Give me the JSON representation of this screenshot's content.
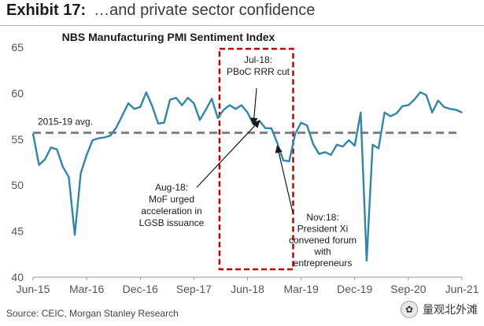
{
  "header": {
    "exhibit_label": "Exhibit 17:",
    "exhibit_title": "…and private sector confidence"
  },
  "source": "Source: CEIC, Morgan Stanley Research",
  "watermark": {
    "text": "量观北外滩"
  },
  "colors": {
    "line": "#2f86a6",
    "avg": "#7f7f7f",
    "highlight": "#c00000",
    "grid": "#dddddd"
  },
  "chart_data": {
    "type": "line",
    "title": "NBS Manufacturing PMI Sentiment Index",
    "xlabel": "",
    "ylabel": "",
    "ylim": [
      40,
      65
    ],
    "yticks": [
      40,
      45,
      50,
      55,
      60,
      65
    ],
    "x_tick_labels": [
      "Jun-15",
      "Mar-16",
      "Dec-16",
      "Sep-17",
      "Jun-18",
      "Mar-19",
      "Dec-19",
      "Sep-20",
      "Jun-21"
    ],
    "grid": false,
    "series": [
      {
        "values": [
          {
            "x": "2015-06",
            "y": 55.6
          },
          {
            "x": "2015-07",
            "y": 52.2
          },
          {
            "x": "2015-08",
            "y": 52.8
          },
          {
            "x": "2015-09",
            "y": 54.1
          },
          {
            "x": "2015-10",
            "y": 53.9
          },
          {
            "x": "2015-11",
            "y": 52.0
          },
          {
            "x": "2015-12",
            "y": 50.9
          },
          {
            "x": "2016-01",
            "y": 44.6
          },
          {
            "x": "2016-02",
            "y": 51.3
          },
          {
            "x": "2016-03",
            "y": 53.3
          },
          {
            "x": "2016-04",
            "y": 54.9
          },
          {
            "x": "2016-05",
            "y": 55.1
          },
          {
            "x": "2016-06",
            "y": 55.2
          },
          {
            "x": "2016-07",
            "y": 55.4
          },
          {
            "x": "2016-08",
            "y": 56.3
          },
          {
            "x": "2016-09",
            "y": 57.6
          },
          {
            "x": "2016-10",
            "y": 58.9
          },
          {
            "x": "2016-11",
            "y": 58.3
          },
          {
            "x": "2016-12",
            "y": 58.5
          },
          {
            "x": "2017-01",
            "y": 60.1
          },
          {
            "x": "2017-02",
            "y": 58.6
          },
          {
            "x": "2017-03",
            "y": 56.7
          },
          {
            "x": "2017-04",
            "y": 56.8
          },
          {
            "x": "2017-05",
            "y": 59.3
          },
          {
            "x": "2017-06",
            "y": 59.5
          },
          {
            "x": "2017-07",
            "y": 58.7
          },
          {
            "x": "2017-08",
            "y": 59.5
          },
          {
            "x": "2017-09",
            "y": 58.9
          },
          {
            "x": "2017-10",
            "y": 57.1
          },
          {
            "x": "2017-11",
            "y": 58.2
          },
          {
            "x": "2017-12",
            "y": 59.4
          },
          {
            "x": "2018-01",
            "y": 57.3
          },
          {
            "x": "2018-02",
            "y": 58.2
          },
          {
            "x": "2018-03",
            "y": 58.7
          },
          {
            "x": "2018-04",
            "y": 58.3
          },
          {
            "x": "2018-05",
            "y": 58.7
          },
          {
            "x": "2018-06",
            "y": 57.9
          },
          {
            "x": "2018-07",
            "y": 56.6
          },
          {
            "x": "2018-08",
            "y": 57.0
          },
          {
            "x": "2018-09",
            "y": 56.2
          },
          {
            "x": "2018-10",
            "y": 56.2
          },
          {
            "x": "2018-11",
            "y": 54.6
          },
          {
            "x": "2018-12",
            "y": 52.7
          },
          {
            "x": "2019-01",
            "y": 52.6
          },
          {
            "x": "2019-02",
            "y": 55.6
          },
          {
            "x": "2019-03",
            "y": 56.8
          },
          {
            "x": "2019-04",
            "y": 56.5
          },
          {
            "x": "2019-05",
            "y": 54.5
          },
          {
            "x": "2019-06",
            "y": 53.4
          },
          {
            "x": "2019-07",
            "y": 53.6
          },
          {
            "x": "2019-08",
            "y": 53.3
          },
          {
            "x": "2019-09",
            "y": 54.4
          },
          {
            "x": "2019-10",
            "y": 54.2
          },
          {
            "x": "2019-11",
            "y": 54.9
          },
          {
            "x": "2019-12",
            "y": 54.3
          },
          {
            "x": "2020-01",
            "y": 57.9
          },
          {
            "x": "2020-02",
            "y": 41.8
          },
          {
            "x": "2020-03",
            "y": 54.4
          },
          {
            "x": "2020-04",
            "y": 54.0
          },
          {
            "x": "2020-05",
            "y": 57.9
          },
          {
            "x": "2020-06",
            "y": 57.5
          },
          {
            "x": "2020-07",
            "y": 57.8
          },
          {
            "x": "2020-08",
            "y": 58.6
          },
          {
            "x": "2020-09",
            "y": 58.7
          },
          {
            "x": "2020-10",
            "y": 59.3
          },
          {
            "x": "2020-11",
            "y": 60.1
          },
          {
            "x": "2020-12",
            "y": 59.8
          },
          {
            "x": "2021-01",
            "y": 57.9
          },
          {
            "x": "2021-02",
            "y": 59.2
          },
          {
            "x": "2021-03",
            "y": 58.5
          },
          {
            "x": "2021-04",
            "y": 58.3
          },
          {
            "x": "2021-05",
            "y": 58.2
          },
          {
            "x": "2021-06",
            "y": 57.9
          }
        ]
      }
    ],
    "reference_line": {
      "label": "2015-19 avg.",
      "value": 55.7
    },
    "highlight_period": {
      "start": "2018-05",
      "end": "2019-01"
    },
    "annotations": [
      {
        "lines": [
          "Jul-18:",
          "PBoC RRR cut"
        ],
        "x": "2018-07",
        "y": 56.6
      },
      {
        "lines": [
          "Aug-18:",
          "MoF urged",
          "acceleration in",
          "LGSB issuance"
        ],
        "x": "2018-08",
        "y": 57.0
      },
      {
        "lines": [
          "Nov:18:",
          "President Xi",
          "convened forum",
          "with",
          "entrepreneurs"
        ],
        "x": "2018-11",
        "y": 54.6
      }
    ]
  }
}
